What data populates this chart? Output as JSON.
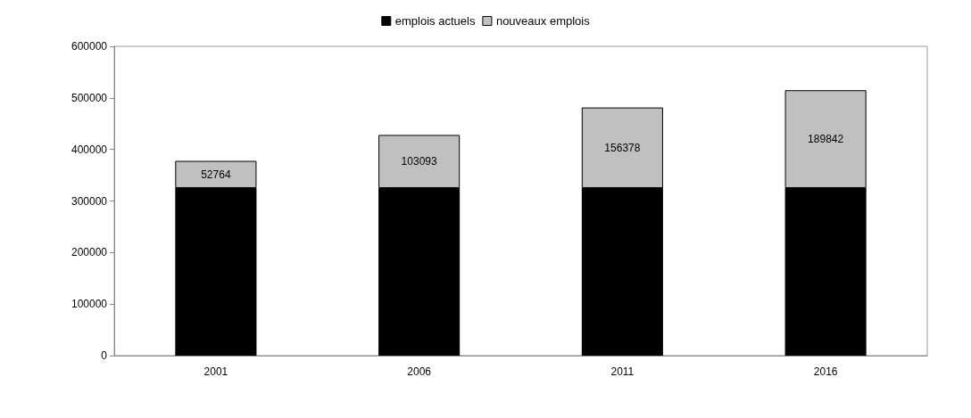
{
  "chart_data": {
    "type": "bar",
    "stacked": true,
    "categories": [
      "2001",
      "2006",
      "2011",
      "2016"
    ],
    "series": [
      {
        "name": "emplois actuels",
        "color": "#000000",
        "values": [
          325000,
          325000,
          325000,
          325000
        ]
      },
      {
        "name": "nouveaux emplois",
        "color": "#c0c0c0",
        "values": [
          52764,
          103093,
          156378,
          189842
        ],
        "value_labels": [
          "52764",
          "103093",
          "156378",
          "189842"
        ]
      }
    ],
    "ylim": [
      0,
      600000
    ],
    "yticks": [
      0,
      100000,
      200000,
      300000,
      400000,
      500000,
      600000
    ],
    "grid": false,
    "legend": "top"
  }
}
